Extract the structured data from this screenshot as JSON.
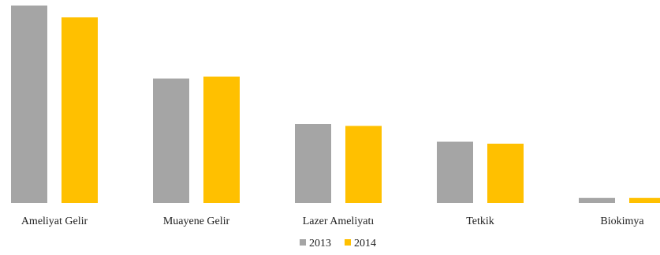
{
  "chart_data": {
    "type": "bar",
    "categories": [
      "Ameliyat Gelir",
      "Muayene Gelir",
      "Lazer Ameliyatı",
      "Tetkik",
      "Biokimya"
    ],
    "series": [
      {
        "name": "2013",
        "color": "#a5a5a5",
        "values": [
          100,
          63,
          40,
          31,
          2.5
        ]
      },
      {
        "name": "2014",
        "color": "#ffc000",
        "values": [
          94,
          64,
          39,
          30,
          2.5
        ]
      }
    ],
    "ylim": [
      0,
      100
    ],
    "grid": false,
    "legend": "bottom-center"
  }
}
